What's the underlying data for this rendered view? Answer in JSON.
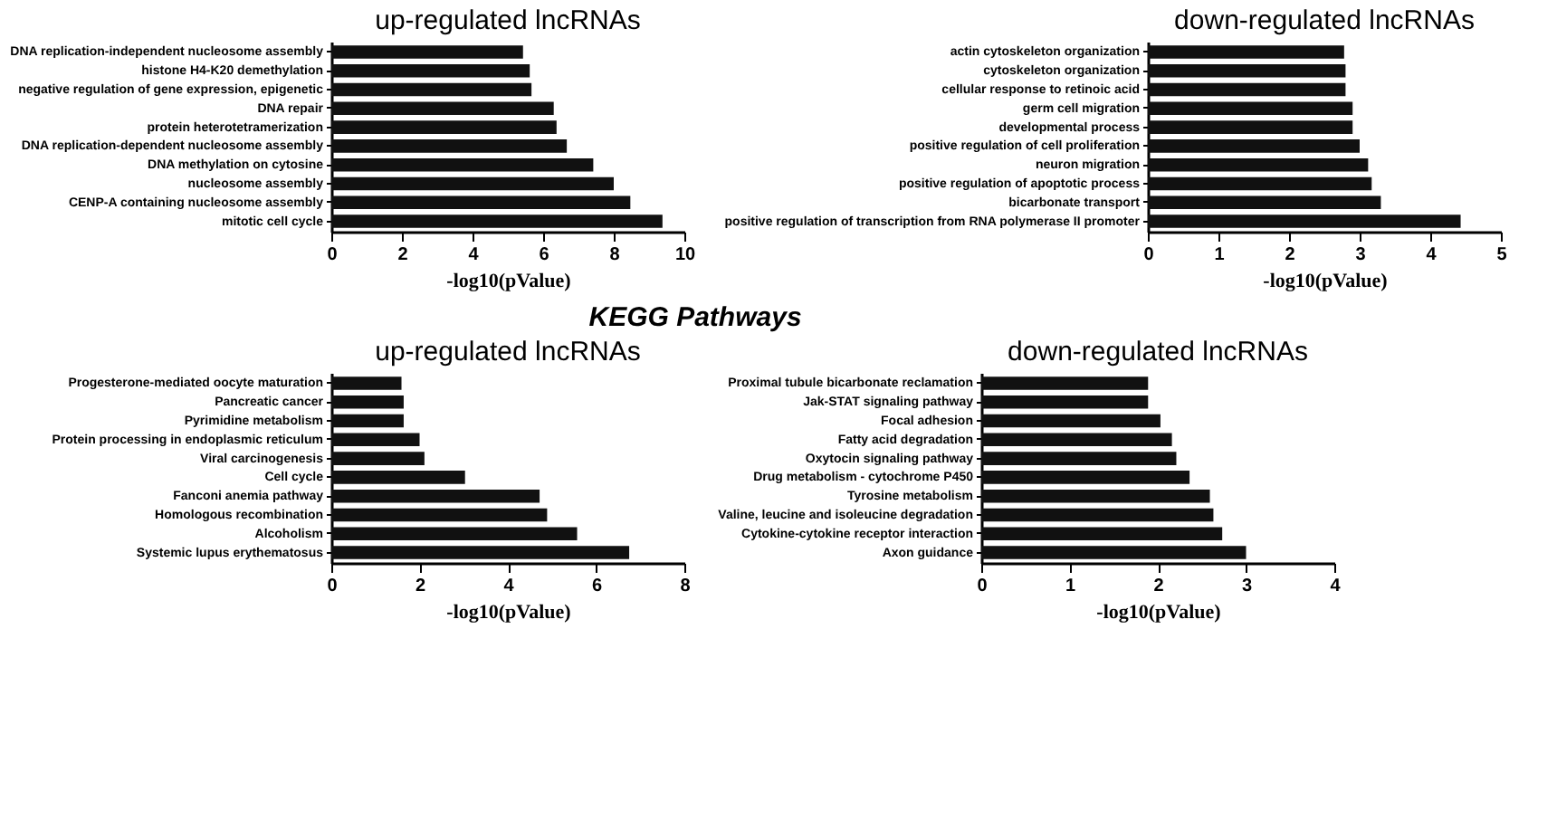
{
  "chart_data": [
    {
      "type": "bar",
      "orientation": "horizontal",
      "title": "up-regulated lncRNAs",
      "xlabel": "-log10(pValue)",
      "grid": false,
      "categories": [
        "DNA replication-independent nucleosome assembly",
        "histone H4-K20 demethylation",
        "negative regulation of gene expression, epigenetic",
        "DNA repair",
        "protein heterotetramerization",
        "DNA replication-dependent nucleosome assembly",
        "DNA methylation on cytosine",
        "nucleosome assembly",
        "CENP-A containing nucleosome assembly",
        "mitotic cell cycle"
      ],
      "values": [
        5.43,
        5.62,
        5.67,
        6.3,
        6.38,
        6.67,
        7.42,
        8.0,
        8.47,
        9.38
      ],
      "color": "#111111",
      "xlim": [
        0,
        10
      ],
      "xticks": [
        0,
        2,
        4,
        6,
        8,
        10
      ]
    },
    {
      "type": "bar",
      "orientation": "horizontal",
      "title": "down-regulated lncRNAs",
      "xlabel": "-log10(pValue)",
      "grid": false,
      "categories": [
        "actin cytoskeleton organization",
        "cytoskeleton organization",
        "cellular response to retinoic acid",
        "germ cell migration",
        "developmental process",
        "positive regulation of cell proliferation",
        "neuron migration",
        "positive regulation of apoptotic process",
        "bicarbonate transport",
        "positive regulation of transcription from RNA polymerase II promoter"
      ],
      "values": [
        2.78,
        2.8,
        2.8,
        2.9,
        2.9,
        3.0,
        3.12,
        3.17,
        3.3,
        4.43
      ],
      "color": "#111111",
      "xlim": [
        0,
        5
      ],
      "xticks": [
        0,
        1,
        2,
        3,
        4,
        5
      ]
    },
    {
      "type": "bar",
      "orientation": "horizontal",
      "title": "up-regulated lncRNAs",
      "xlabel": "-log10(pValue)",
      "grid": false,
      "annotations": [
        "KEGG Pathways"
      ],
      "categories": [
        "Progesterone-mediated oocyte maturation",
        "Pancreatic cancer",
        "Pyrimidine metabolism",
        "Protein processing in endoplasmic reticulum",
        "Viral carcinogenesis",
        "Cell cycle",
        "Fanconi anemia pathway",
        "Homologous recombination",
        "Alcoholism",
        "Systemic lupus erythematosus"
      ],
      "values": [
        1.59,
        1.64,
        1.64,
        2.0,
        2.11,
        3.03,
        4.72,
        4.89,
        5.57,
        6.75
      ],
      "color": "#111111",
      "xlim": [
        0,
        8
      ],
      "xticks": [
        0,
        2,
        4,
        6,
        8
      ]
    },
    {
      "type": "bar",
      "orientation": "horizontal",
      "title": "down-regulated lncRNAs",
      "xlabel": "-log10(pValue)",
      "grid": false,
      "categories": [
        "Proximal tubule bicarbonate reclamation",
        "Jak-STAT signaling pathway",
        "Focal adhesion",
        "Fatty acid degradation",
        "Oxytocin signaling pathway",
        "Drug metabolism - cytochrome P450",
        "Tyrosine metabolism",
        "Valine, leucine and isoleucine degradation",
        "Cytokine-cytokine receptor interaction",
        "Axon guidance"
      ],
      "values": [
        1.89,
        1.89,
        2.03,
        2.16,
        2.21,
        2.36,
        2.59,
        2.63,
        2.73,
        3.0
      ],
      "color": "#111111",
      "xlim": [
        0,
        4
      ],
      "xticks": [
        0,
        1,
        2,
        3,
        4
      ]
    }
  ]
}
